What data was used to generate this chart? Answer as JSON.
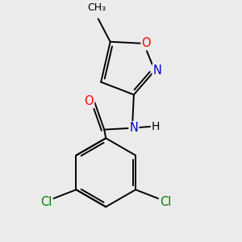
{
  "background_color": "#ebebeb",
  "atom_colors": {
    "C": "#000000",
    "N": "#0000cc",
    "O": "#ff0000",
    "Cl": "#008000",
    "H": "#000000"
  },
  "bond_color": "#000000",
  "bond_width": 1.4,
  "font_size": 10.5
}
